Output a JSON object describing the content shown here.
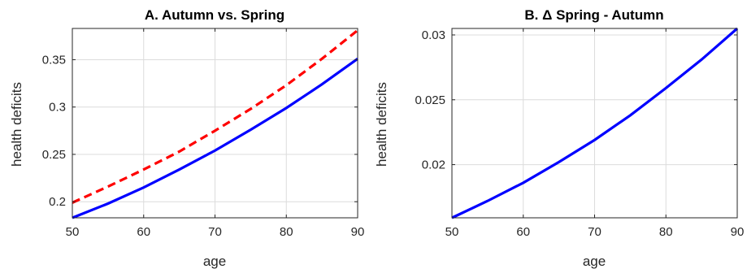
{
  "chart_data": [
    {
      "type": "line",
      "title": "A. Autumn vs. Spring",
      "xlabel": "age",
      "ylabel": "health deficits",
      "xlim": [
        50,
        90
      ],
      "ylim": [
        0.183,
        0.383
      ],
      "xticks": [
        50,
        60,
        70,
        80,
        90
      ],
      "xtick_labels": [
        "50",
        "60",
        "70",
        "80",
        "90"
      ],
      "yticks": [
        0.2,
        0.25,
        0.3,
        0.35
      ],
      "ytick_labels": [
        "0.2",
        "0.25",
        "0.3",
        "0.35"
      ],
      "grid": true,
      "x": [
        50,
        55,
        60,
        65,
        70,
        75,
        80,
        85,
        90
      ],
      "series": [
        {
          "style": "solid",
          "color": "#0000ff",
          "values": [
            0.183,
            0.198,
            0.215,
            0.234,
            0.254,
            0.276,
            0.299,
            0.324,
            0.351
          ]
        },
        {
          "style": "dashed",
          "color": "#ff0000",
          "values": [
            0.199,
            0.216,
            0.234,
            0.253,
            0.275,
            0.298,
            0.323,
            0.351,
            0.381
          ]
        }
      ]
    },
    {
      "type": "line",
      "title": "B. Δ Spring - Autumn",
      "xlabel": "age",
      "ylabel": "health deficits",
      "xlim": [
        50,
        90
      ],
      "ylim": [
        0.0159,
        0.0305
      ],
      "xticks": [
        50,
        60,
        70,
        80,
        90
      ],
      "xtick_labels": [
        "50",
        "60",
        "70",
        "80",
        "90"
      ],
      "yticks": [
        0.02,
        0.025,
        0.03
      ],
      "ytick_labels": [
        "0.02",
        "0.025",
        "0.03"
      ],
      "grid": true,
      "x": [
        50,
        55,
        60,
        65,
        70,
        75,
        80,
        85,
        90
      ],
      "series": [
        {
          "style": "solid",
          "color": "#0000ff",
          "values": [
            0.0159,
            0.0172,
            0.0186,
            0.0202,
            0.0219,
            0.0238,
            0.0259,
            0.0281,
            0.0305
          ]
        }
      ]
    }
  ]
}
